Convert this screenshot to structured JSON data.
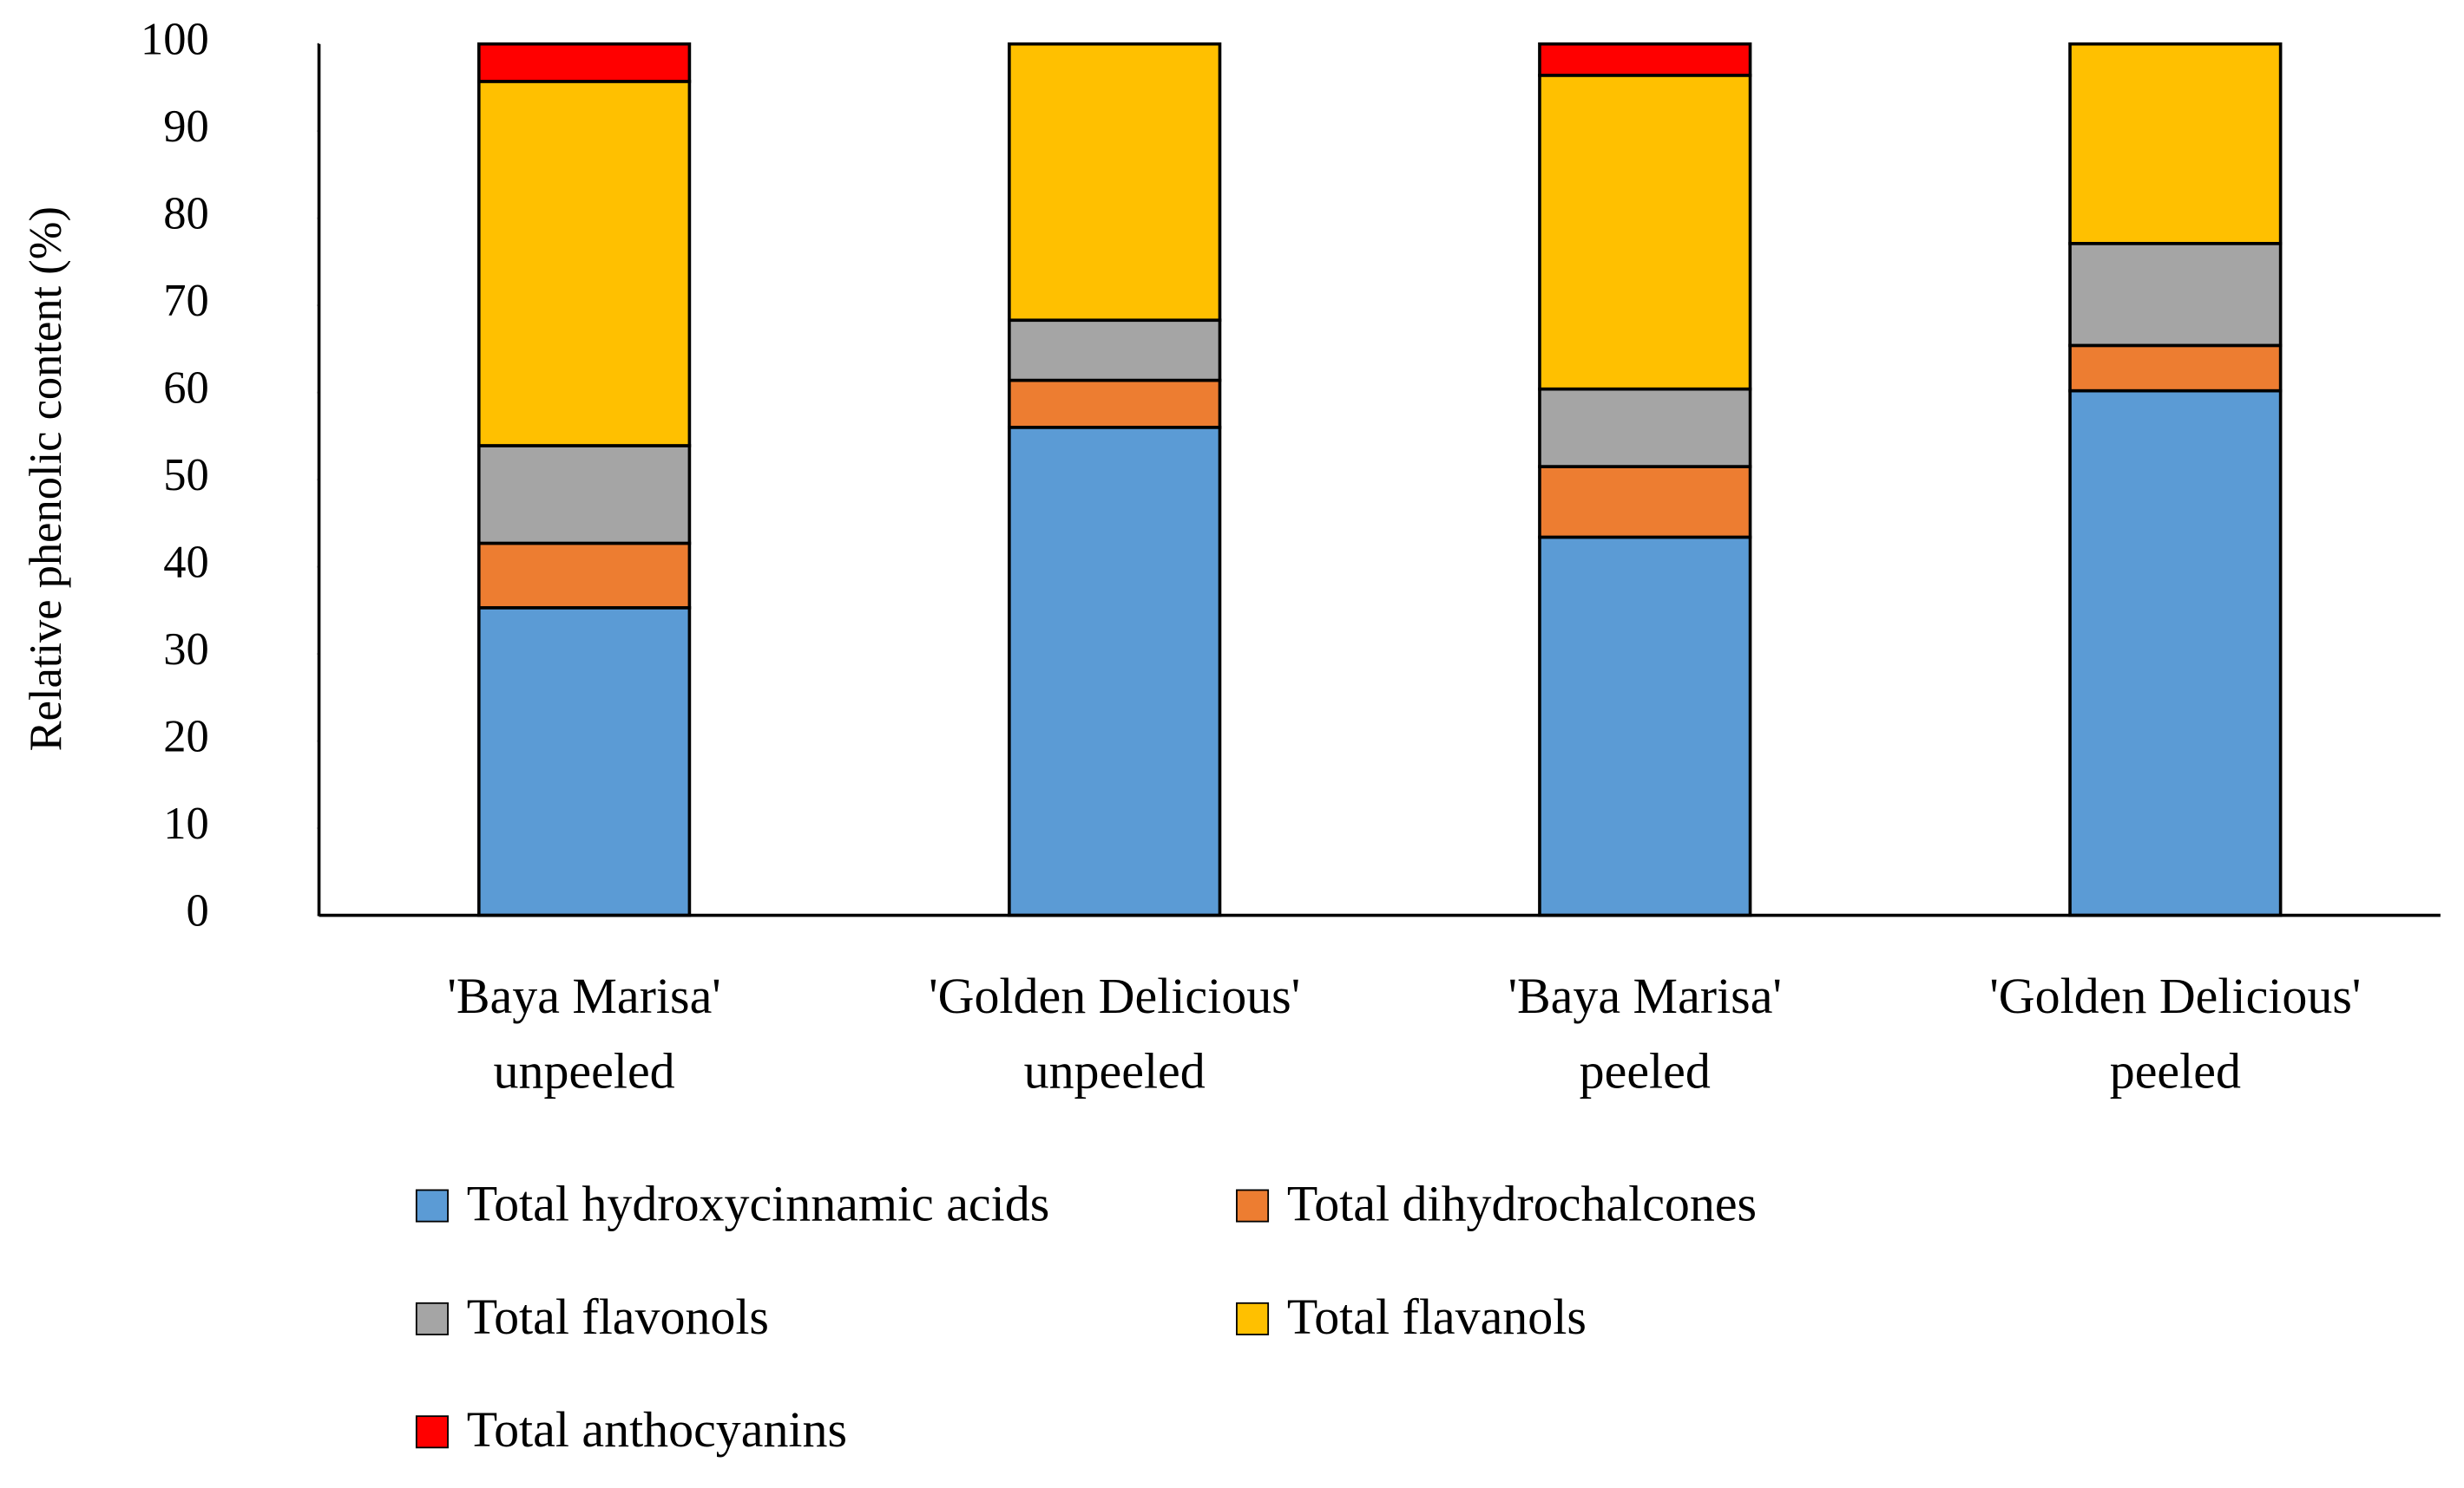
{
  "chart_data": {
    "type": "stacked_bar",
    "y_label": "Relative phenolic content (%)",
    "categories": [
      "'Baya Marisa'\nunpeeled",
      "'Golden Delicious'\nunpeeled",
      "'Baya Marisa'\npeeled",
      "'Golden Delicious'\npeeled"
    ],
    "series": [
      {
        "name": "Total hydroxycinnamic acids",
        "color": "#5b9bd5",
        "values": [
          35.3,
          56.0,
          43.4,
          60.2
        ]
      },
      {
        "name": "Total dihydrochalcones",
        "color": "#ed7d31",
        "values": [
          7.4,
          5.4,
          8.1,
          5.2
        ]
      },
      {
        "name": "Total flavonols",
        "color": "#a5a5a5",
        "values": [
          11.2,
          6.9,
          8.9,
          11.7
        ]
      },
      {
        "name": "Total flavanols",
        "color": "#ffc000",
        "values": [
          41.8,
          31.7,
          36.0,
          22.9
        ]
      },
      {
        "name": "Total anthocyanins",
        "color": "#ff0000",
        "values": [
          4.3,
          0,
          3.6,
          0
        ]
      }
    ],
    "ylim": [
      0,
      100
    ],
    "yticks": [
      0,
      10,
      20,
      30,
      40,
      50,
      60,
      70,
      80,
      90,
      100
    ]
  }
}
